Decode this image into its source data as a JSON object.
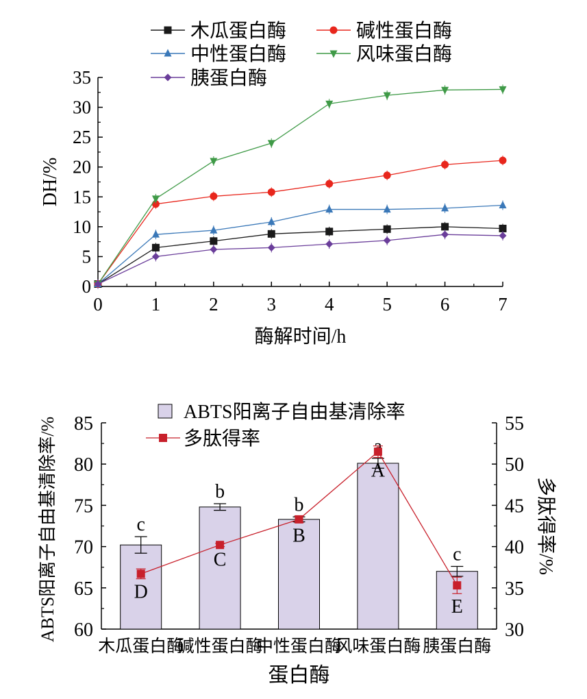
{
  "chart_data": [
    {
      "type": "line",
      "xlabel": "酶解时间/h",
      "ylabel": "DH/%",
      "xlim": [
        0,
        7
      ],
      "ylim": [
        0,
        35
      ],
      "x_ticks": [
        "0",
        "1",
        "2",
        "3",
        "4",
        "5",
        "6",
        "7"
      ],
      "y_ticks": [
        "0",
        "5",
        "10",
        "15",
        "20",
        "25",
        "30",
        "35"
      ],
      "grid": false,
      "legend_position": "top",
      "x": [
        0,
        1,
        2,
        3,
        4,
        5,
        6,
        7
      ],
      "series": [
        {
          "name": "木瓜蛋白酶",
          "color": "#1a1a1a",
          "marker": "square",
          "values": [
            0.4,
            6.5,
            7.6,
            8.8,
            9.2,
            9.6,
            10.0,
            9.7
          ]
        },
        {
          "name": "碱性蛋白酶",
          "color": "#e8261c",
          "marker": "circle",
          "values": [
            0.4,
            13.8,
            15.1,
            15.8,
            17.2,
            18.6,
            20.4,
            21.1
          ]
        },
        {
          "name": "中性蛋白酶",
          "color": "#3a78b8",
          "marker": "triangle-up",
          "values": [
            0.4,
            8.7,
            9.4,
            10.8,
            12.9,
            12.9,
            13.1,
            13.6
          ]
        },
        {
          "name": "风味蛋白酶",
          "color": "#3f9a47",
          "marker": "triangle-down",
          "values": [
            0.4,
            14.7,
            21.0,
            24.0,
            30.6,
            32.0,
            32.9,
            33.0
          ]
        },
        {
          "name": "胰蛋白酶",
          "color": "#6a3d9a",
          "marker": "diamond",
          "values": [
            0.4,
            5.0,
            6.2,
            6.5,
            7.1,
            7.7,
            8.7,
            8.5
          ]
        }
      ]
    },
    {
      "type": "bar",
      "xlabel": "蛋白酶",
      "ylabel": "ABTS阳离子自由基清除率/%",
      "y2label": "多肽得率/%",
      "ylim": [
        60,
        85
      ],
      "y2lim": [
        30,
        55
      ],
      "y_ticks": [
        "60",
        "65",
        "70",
        "75",
        "80",
        "85"
      ],
      "y2_ticks": [
        "30",
        "35",
        "40",
        "45",
        "50",
        "55"
      ],
      "categories": [
        "木瓜蛋白酶",
        "碱性蛋白酶",
        "中性蛋白酶",
        "风味蛋白酶",
        "胰蛋白酶"
      ],
      "grid": false,
      "legend_position": "top",
      "bar_series": {
        "name": "ABTS阳离子自由基清除率",
        "color": "#d9d2e9",
        "values": [
          70.2,
          74.8,
          73.3,
          80.1,
          67.0
        ],
        "errors": [
          1.0,
          0.4,
          0.3,
          0.6,
          0.6
        ],
        "labels": [
          "c",
          "b",
          "b",
          "a",
          "c"
        ]
      },
      "line_series": {
        "name": "多肽得率",
        "color": "#c8202b",
        "values": [
          36.7,
          40.2,
          43.3,
          51.5,
          35.3
        ],
        "errors": [
          0.6,
          0.2,
          0.4,
          0.7,
          1.0
        ],
        "labels": [
          "D",
          "C",
          "B",
          "A",
          "E"
        ]
      }
    }
  ]
}
